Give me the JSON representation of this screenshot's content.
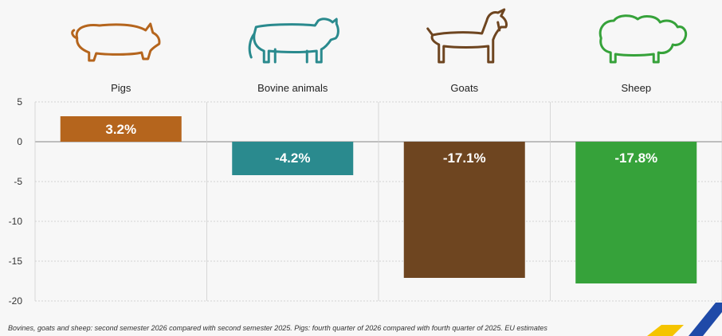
{
  "chart_data": {
    "type": "bar",
    "categories": [
      "Pigs",
      "Bovine animals",
      "Goats",
      "Sheep"
    ],
    "values": [
      3.2,
      -4.2,
      -17.1,
      -17.8
    ],
    "data_labels": [
      "3.2%",
      "-4.2%",
      "-17.1%",
      "-17.8%"
    ],
    "colors": [
      "#b5651d",
      "#2a8a8e",
      "#6e4520",
      "#36a23a"
    ],
    "icons": [
      "pig-icon",
      "cow-icon",
      "goat-icon",
      "sheep-icon"
    ],
    "ylim": [
      -20,
      5
    ],
    "yticks": [
      5,
      0,
      -5,
      -10,
      -15,
      -20
    ],
    "ytick_labels": [
      "5",
      "0",
      "-5",
      "-10",
      "-15",
      "-20"
    ],
    "grid": true,
    "legend": "none"
  },
  "footnote": "Bovines, goats and sheep: second semester 2026 compared with second semester 2025. Pigs: fourth quarter of 2026 compared with fourth quarter of 2025. EU estimates",
  "decoration": {
    "corner_colors": [
      "#f5c400",
      "#1f4aa8"
    ]
  }
}
